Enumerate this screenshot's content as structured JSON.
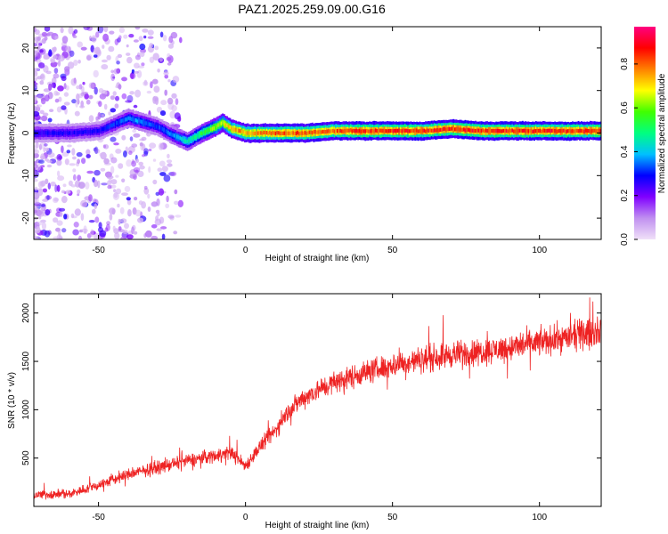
{
  "page_title": "PAZ1.2025.259.09.00.G16",
  "chart_data": [
    {
      "id": "spectrogram",
      "type": "heatmap",
      "xlabel": "Height of straight line (km)",
      "ylabel": "Frequency (Hz)",
      "xlim": [
        -72,
        121
      ],
      "ylim": [
        -25,
        25
      ],
      "xticks": [
        -50,
        0,
        50,
        100
      ],
      "yticks": [
        -20,
        -10,
        0,
        10,
        20
      ],
      "colorbar": {
        "label": "Normalized spectral amplitude",
        "range": [
          0.0,
          0.97
        ],
        "ticks": [
          0.0,
          0.2,
          0.4,
          0.6,
          0.8
        ],
        "colormap": [
          "#f0e0f8",
          "#c090f0",
          "#8000ff",
          "#0000ff",
          "#00c0ff",
          "#00ff80",
          "#40ff00",
          "#ffff00",
          "#ff8000",
          "#ff0000",
          "#ff0080"
        ]
      },
      "ridge": {
        "x": [
          -70,
          -60,
          -50,
          -45,
          -40,
          -35,
          -30,
          -25,
          -20,
          -15,
          -10,
          -8,
          -5,
          0,
          10,
          20,
          30,
          40,
          50,
          60,
          70,
          80,
          90,
          100,
          110,
          120
        ],
        "freq": [
          0,
          0,
          0.5,
          2,
          3.5,
          2.5,
          1.5,
          -0.5,
          -2,
          0,
          1.5,
          2.5,
          1,
          0,
          0,
          0,
          0.5,
          0.5,
          0.5,
          0.5,
          1,
          0.5,
          0.5,
          0.5,
          0.5,
          0.5
        ],
        "amplitude": [
          0.3,
          0.3,
          0.3,
          0.35,
          0.4,
          0.4,
          0.35,
          0.4,
          0.5,
          0.6,
          0.7,
          0.75,
          0.8,
          0.85,
          0.9,
          0.9,
          0.9,
          0.95,
          0.95,
          0.95,
          0.95,
          0.95,
          0.95,
          0.95,
          0.95,
          0.95
        ]
      },
      "noise_region_x": [
        -72,
        -22
      ]
    },
    {
      "id": "snr",
      "type": "line",
      "xlabel": "Height of straight line (km)",
      "ylabel": "SNR (10 * v/v)",
      "xlim": [
        -72,
        121
      ],
      "ylim": [
        0,
        2200
      ],
      "xticks": [
        -50,
        0,
        50,
        100
      ],
      "yticks": [
        500,
        1000,
        1500,
        2000
      ],
      "color": "#ee2222",
      "trend": {
        "x": [
          -72,
          -60,
          -50,
          -40,
          -30,
          -20,
          -10,
          -5,
          0,
          5,
          10,
          15,
          20,
          25,
          30,
          40,
          50,
          60,
          70,
          80,
          90,
          100,
          110,
          121
        ],
        "y": [
          120,
          130,
          220,
          330,
          400,
          470,
          530,
          560,
          420,
          620,
          780,
          1000,
          1130,
          1210,
          1280,
          1380,
          1460,
          1520,
          1570,
          1600,
          1640,
          1700,
          1750,
          1820
        ]
      }
    }
  ]
}
